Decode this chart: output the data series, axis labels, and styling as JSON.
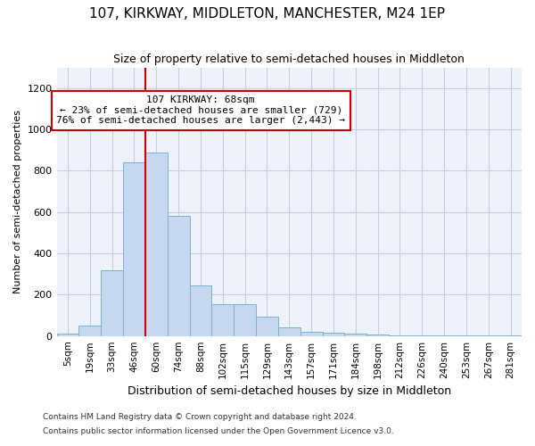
{
  "title": "107, KIRKWAY, MIDDLETON, MANCHESTER, M24 1EP",
  "subtitle": "Size of property relative to semi-detached houses in Middleton",
  "xlabel": "Distribution of semi-detached houses by size in Middleton",
  "ylabel": "Number of semi-detached properties",
  "categories": [
    "5sqm",
    "19sqm",
    "33sqm",
    "46sqm",
    "60sqm",
    "74sqm",
    "88sqm",
    "102sqm",
    "115sqm",
    "129sqm",
    "143sqm",
    "157sqm",
    "171sqm",
    "184sqm",
    "198sqm",
    "212sqm",
    "226sqm",
    "240sqm",
    "253sqm",
    "267sqm",
    "281sqm"
  ],
  "values": [
    10,
    50,
    320,
    840,
    890,
    580,
    245,
    155,
    155,
    95,
    40,
    20,
    15,
    10,
    8,
    5,
    5,
    3,
    3,
    2,
    2
  ],
  "bar_color": "#C5D8F0",
  "bar_edge_color": "#7AAFD4",
  "property_label": "107 KIRKWAY: 68sqm",
  "pct_smaller": 23,
  "count_smaller": 729,
  "pct_larger": 76,
  "count_larger": 2443,
  "vline_color": "#CC0000",
  "vline_x_index": 4.0,
  "ylim": [
    0,
    1300
  ],
  "yticks": [
    0,
    200,
    400,
    600,
    800,
    1000,
    1200
  ],
  "footnote1": "Contains HM Land Registry data © Crown copyright and database right 2024.",
  "footnote2": "Contains public sector information licensed under the Open Government Licence v3.0.",
  "bg_color": "#EEF2FB",
  "grid_color": "#C8CDE0"
}
